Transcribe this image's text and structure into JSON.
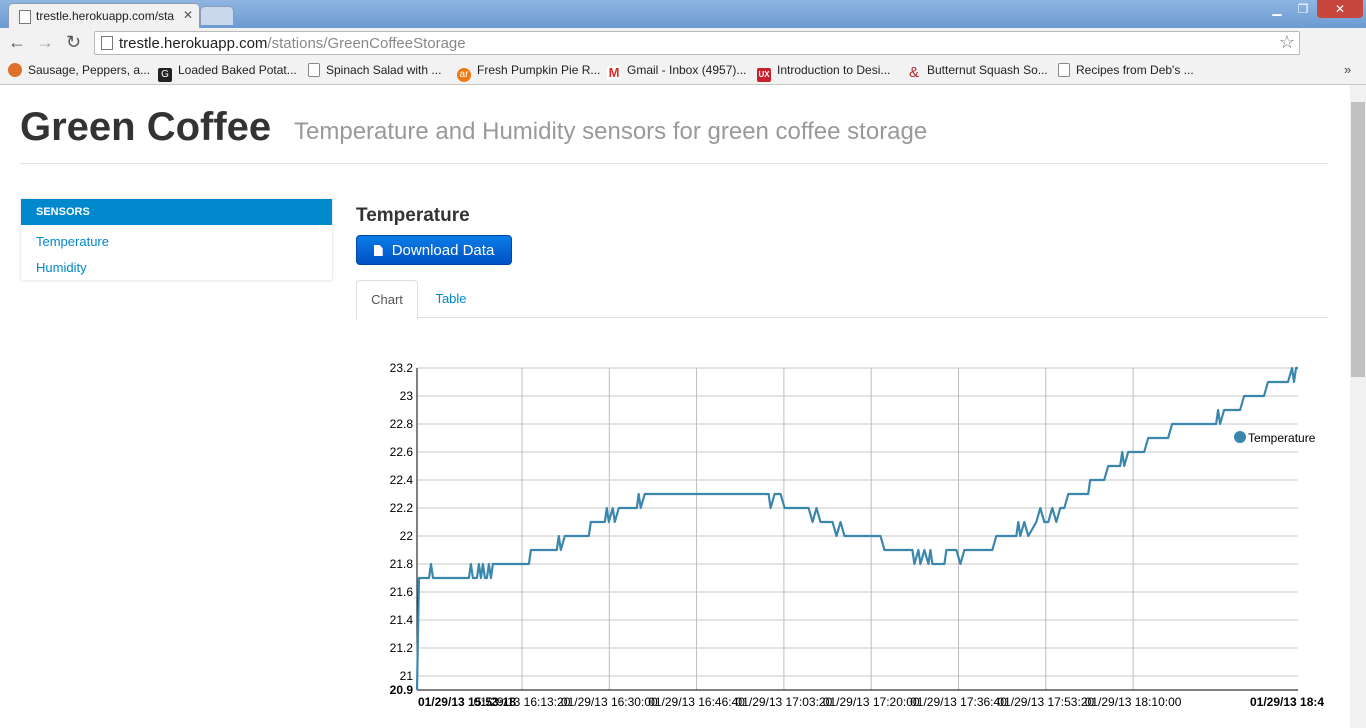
{
  "browser": {
    "tab_title": "trestle.herokuapp.com/sta",
    "url_host": "trestle.herokuapp.com",
    "url_path": "/stations/GreenCoffeeStorage",
    "bookmarks": [
      {
        "label": "Sausage, Peppers, a...",
        "icon": "flower-icon",
        "color": "#e0702a"
      },
      {
        "label": "Loaded Baked Potat...",
        "icon": "g-icon",
        "color": "#222222"
      },
      {
        "label": "Spinach Salad with ...",
        "icon": "page-icon",
        "color": "#ffffff"
      },
      {
        "label": "Fresh Pumpkin Pie R...",
        "icon": "ar-icon",
        "color": "#f07a10"
      },
      {
        "label": "Gmail - Inbox (4957)...",
        "icon": "gmail-icon",
        "color": "#d93025"
      },
      {
        "label": "Introduction to Desi...",
        "icon": "ux-icon",
        "color": "#c8202c"
      },
      {
        "label": "Butternut Squash So...",
        "icon": "ampersand-icon",
        "color": "#b3262e"
      },
      {
        "label": "Recipes from Deb's ...",
        "icon": "page-icon",
        "color": "#ffffff"
      }
    ]
  },
  "page": {
    "title": "Green Coffee",
    "subtitle": "Temperature and Humidity sensors for green coffee storage"
  },
  "sidebar": {
    "header": "SENSORS",
    "items": [
      {
        "label": "Temperature"
      },
      {
        "label": "Humidity"
      }
    ]
  },
  "main": {
    "section_title": "Temperature",
    "download_label": "Download Data",
    "tabs": [
      {
        "label": "Chart",
        "active": true
      },
      {
        "label": "Table",
        "active": false
      }
    ]
  },
  "chart_data": {
    "type": "line",
    "title": "",
    "xlabel": "",
    "ylabel": "",
    "ylim": [
      20.9,
      23.2
    ],
    "yticks": [
      20.9,
      21,
      21.2,
      21.4,
      21.6,
      21.8,
      22,
      22.2,
      22.4,
      22.6,
      22.8,
      23,
      23.2
    ],
    "ytick_labels": [
      "20.9",
      "21",
      "21.2",
      "21.4",
      "21.6",
      "21.8",
      "22",
      "22.2",
      "22.4",
      "22.6",
      "22.8",
      "23",
      "23.2"
    ],
    "xtick_labels": [
      "01/29/13 15:53:18",
      "01/29/13 16:13:20",
      "01/29/13 16:30:00",
      "01/29/13 16:46:40",
      "01/29/13 17:03:20",
      "01/29/13 17:20:00",
      "01/29/13 17:36:40",
      "01/29/13 17:53:20",
      "01/29/13 18:10:00",
      "01/29/13 18:4"
    ],
    "xtick_bold": [
      true,
      false,
      false,
      false,
      false,
      false,
      false,
      false,
      false,
      true
    ],
    "grid": true,
    "legend": "top-right",
    "series": [
      {
        "name": "Temperature",
        "color": "#3a87ad",
        "points": [
          [
            0,
            20.9
          ],
          [
            0.5,
            21.7
          ],
          [
            3,
            21.7
          ],
          [
            3.5,
            21.8
          ],
          [
            4,
            21.7
          ],
          [
            13,
            21.7
          ],
          [
            13.5,
            21.8
          ],
          [
            14,
            21.7
          ],
          [
            15,
            21.7
          ],
          [
            15.5,
            21.8
          ],
          [
            16,
            21.7
          ],
          [
            16.5,
            21.8
          ],
          [
            17,
            21.7
          ],
          [
            17.5,
            21.7
          ],
          [
            18,
            21.8
          ],
          [
            18.5,
            21.7
          ],
          [
            19,
            21.8
          ],
          [
            28,
            21.8
          ],
          [
            28.5,
            21.9
          ],
          [
            35,
            21.9
          ],
          [
            35.5,
            22.0
          ],
          [
            36,
            21.9
          ],
          [
            37,
            22.0
          ],
          [
            43,
            22.0
          ],
          [
            43.5,
            22.1
          ],
          [
            47,
            22.1
          ],
          [
            47.5,
            22.2
          ],
          [
            48,
            22.1
          ],
          [
            49,
            22.2
          ],
          [
            49.5,
            22.1
          ],
          [
            50.5,
            22.2
          ],
          [
            55,
            22.2
          ],
          [
            55.5,
            22.3
          ],
          [
            56,
            22.2
          ],
          [
            57,
            22.3
          ],
          [
            88,
            22.3
          ],
          [
            88.5,
            22.2
          ],
          [
            89.5,
            22.3
          ],
          [
            91,
            22.3
          ],
          [
            92,
            22.2
          ],
          [
            98,
            22.2
          ],
          [
            99,
            22.1
          ],
          [
            100,
            22.2
          ],
          [
            101,
            22.1
          ],
          [
            104,
            22.1
          ],
          [
            105,
            22.0
          ],
          [
            106,
            22.1
          ],
          [
            107,
            22.0
          ],
          [
            116,
            22.0
          ],
          [
            117,
            21.9
          ],
          [
            124,
            21.9
          ],
          [
            124.5,
            21.8
          ],
          [
            125.5,
            21.9
          ],
          [
            126,
            21.8
          ],
          [
            127,
            21.9
          ],
          [
            128,
            21.8
          ],
          [
            128.5,
            21.9
          ],
          [
            129,
            21.8
          ],
          [
            132,
            21.8
          ],
          [
            132.5,
            21.9
          ],
          [
            135,
            21.9
          ],
          [
            136,
            21.8
          ],
          [
            137,
            21.9
          ],
          [
            144,
            21.9
          ],
          [
            145,
            22.0
          ],
          [
            150,
            22.0
          ],
          [
            150.5,
            22.1
          ],
          [
            151,
            22.0
          ],
          [
            152,
            22.1
          ],
          [
            153,
            22.0
          ],
          [
            155,
            22.1
          ],
          [
            156,
            22.2
          ],
          [
            157,
            22.1
          ],
          [
            158,
            22.1
          ],
          [
            159,
            22.2
          ],
          [
            160,
            22.1
          ],
          [
            161,
            22.2
          ],
          [
            162,
            22.2
          ],
          [
            163,
            22.3
          ],
          [
            168,
            22.3
          ],
          [
            168.5,
            22.4
          ],
          [
            172,
            22.4
          ],
          [
            173,
            22.5
          ],
          [
            176,
            22.5
          ],
          [
            176.5,
            22.6
          ],
          [
            177,
            22.5
          ],
          [
            178,
            22.6
          ],
          [
            182,
            22.6
          ],
          [
            183,
            22.7
          ],
          [
            188,
            22.7
          ],
          [
            189,
            22.8
          ],
          [
            200,
            22.8
          ],
          [
            200.5,
            22.9
          ],
          [
            201,
            22.8
          ],
          [
            202,
            22.9
          ],
          [
            206,
            22.9
          ],
          [
            207,
            23.0
          ],
          [
            212,
            23.0
          ],
          [
            213,
            23.1
          ],
          [
            218,
            23.1
          ],
          [
            219,
            23.2
          ],
          [
            219.5,
            23.1
          ],
          [
            220,
            23.2
          ],
          [
            220.5,
            23.2
          ]
        ]
      }
    ]
  }
}
